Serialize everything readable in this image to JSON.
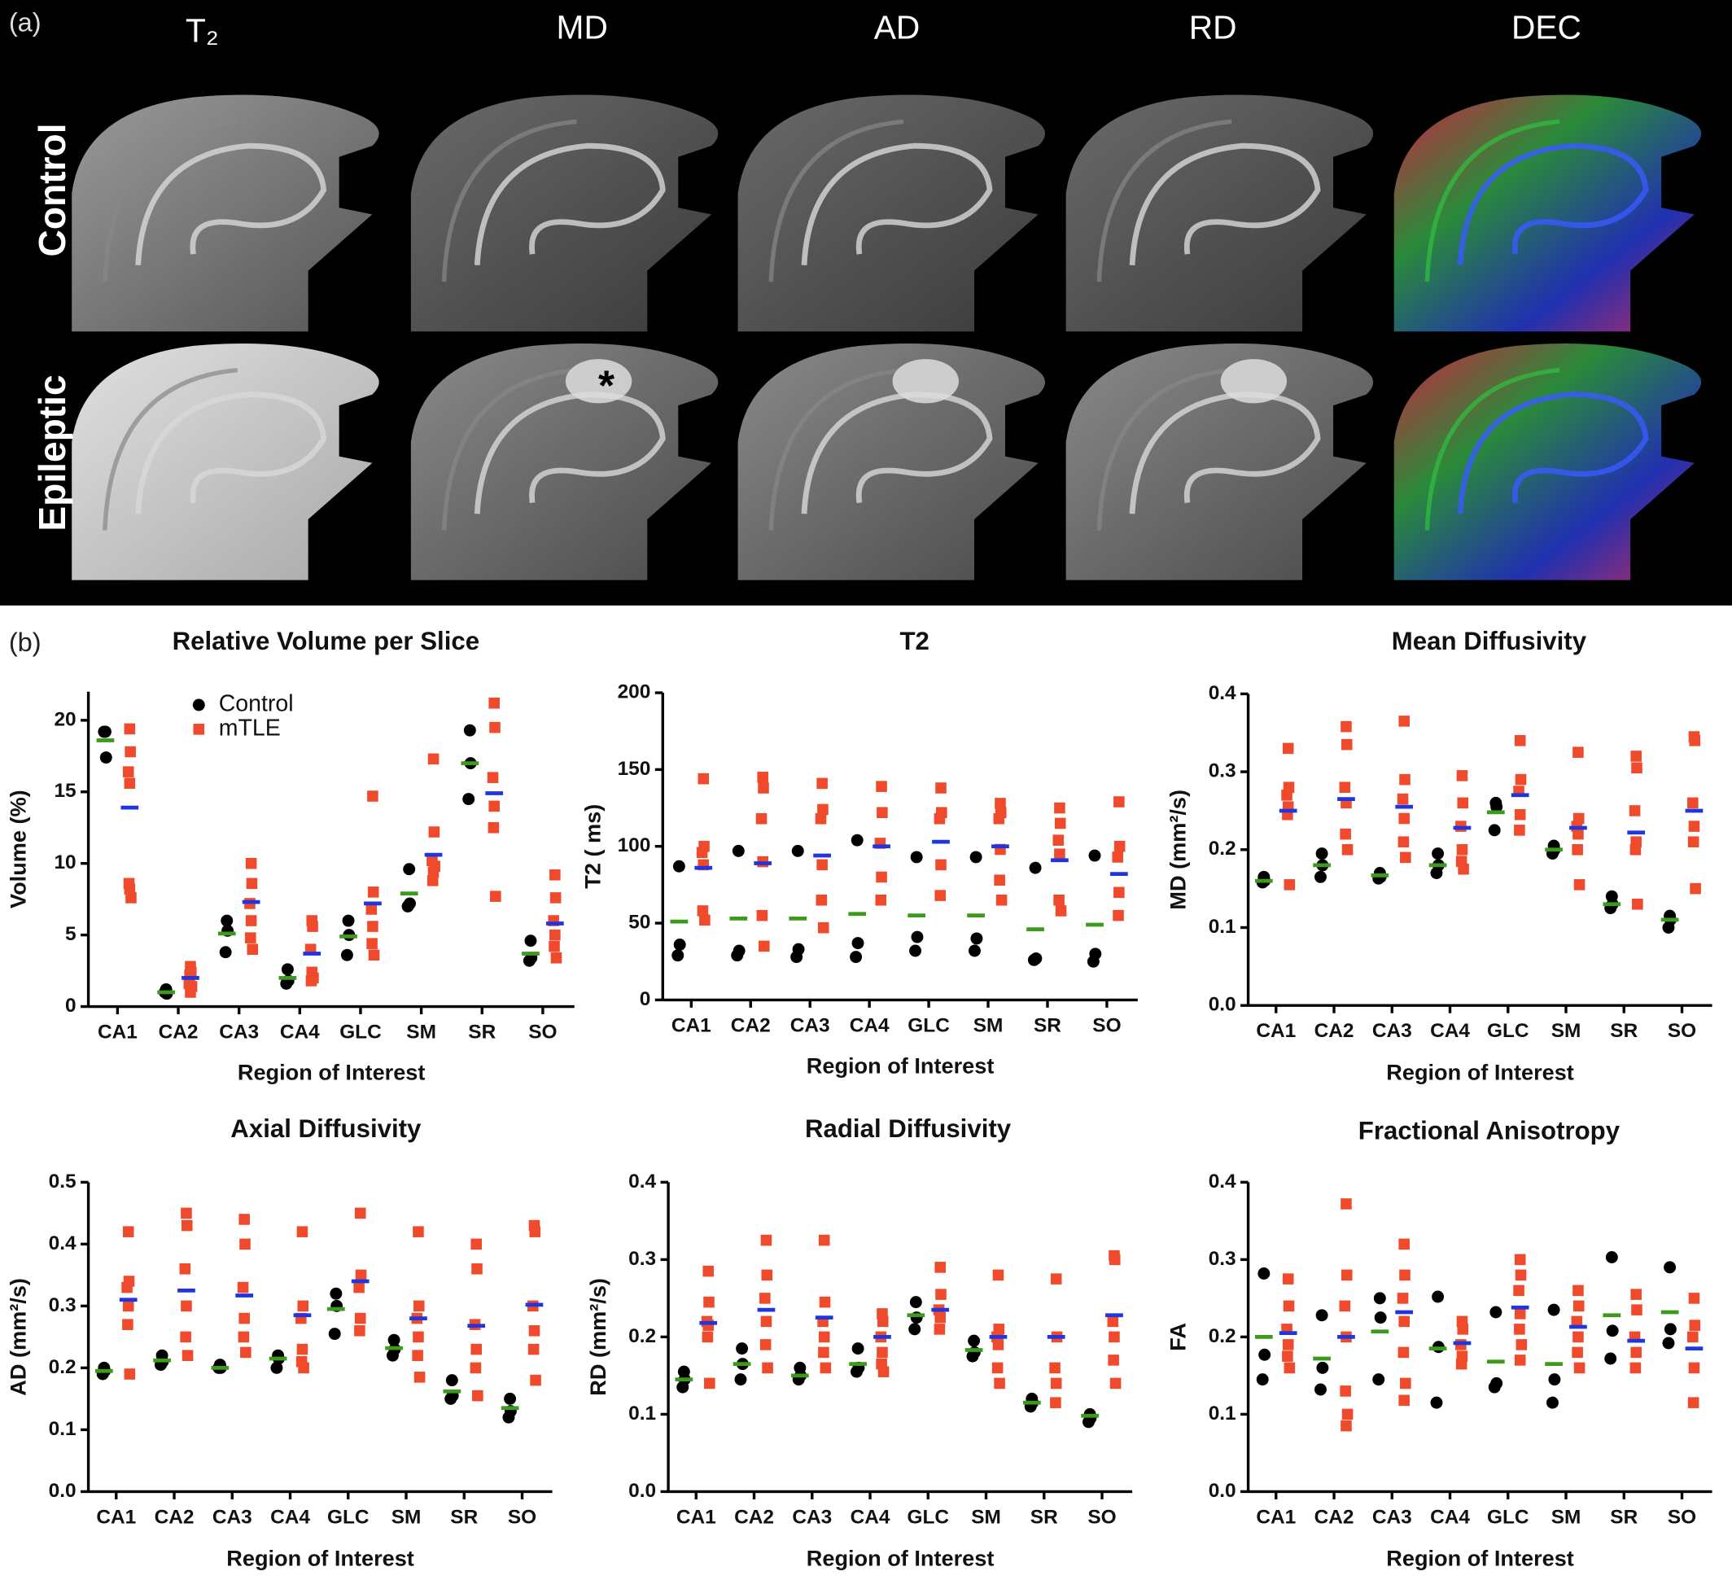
{
  "panel_a": {
    "label": "(a)",
    "columns": [
      "T₂",
      "MD",
      "AD",
      "RD",
      "DEC"
    ],
    "rows": [
      "Control",
      "Epileptic"
    ],
    "annotation": "*"
  },
  "panel_b": {
    "label": "(b)"
  },
  "chart_data": [
    {
      "type": "strip",
      "title": "Relative Volume per Slice",
      "xlabel": "Region of Interest",
      "ylabel": "Volume (%)",
      "categories": [
        "CA1",
        "CA2",
        "CA3",
        "CA4",
        "GLC",
        "SM",
        "SR",
        "SO"
      ],
      "ylim": [
        0,
        22
      ],
      "yticks": [
        0,
        5,
        10,
        15,
        20
      ],
      "legend": "upper left",
      "series": [
        {
          "name": "Control",
          "color": "#000000",
          "mean_color": "#3c9a1c",
          "marker": "circle",
          "values": [
            [
              19.2,
              17.4,
              19.2
            ],
            [
              1.2,
              0.9,
              1.0
            ],
            [
              6.0,
              5.3,
              3.8
            ],
            [
              2.6,
              1.8,
              1.6
            ],
            [
              6.0,
              5.0,
              3.6
            ],
            [
              9.6,
              7.2,
              7.0
            ],
            [
              19.3,
              17.0,
              14.5
            ],
            [
              4.6,
              3.4,
              3.2
            ]
          ],
          "means": [
            18.6,
            1.0,
            5.1,
            2.0,
            4.9,
            7.9,
            17.0,
            3.7
          ]
        },
        {
          "name": "mTLE",
          "color": "#f04a2c",
          "mean_color": "#1f35e0",
          "marker": "square",
          "values": [
            [
              19.4,
              17.8,
              16.4,
              15.6,
              8.6,
              7.6,
              8.2
            ],
            [
              2.8,
              2.4,
              1.6,
              1.0,
              2.2,
              1.4
            ],
            [
              10.0,
              8.6,
              7.2,
              6.0,
              4.8,
              4.0
            ],
            [
              6.0,
              5.6,
              4.0,
              2.4,
              1.8,
              2.0
            ],
            [
              14.7,
              8.0,
              6.8,
              5.6,
              4.4,
              3.6
            ],
            [
              17.3,
              12.2,
              10.2,
              9.4,
              8.8,
              9.8
            ],
            [
              21.2,
              19.5,
              16.0,
              14.0,
              12.5,
              7.7
            ],
            [
              9.2,
              7.6,
              6.0,
              5.0,
              4.2,
              3.4
            ]
          ],
          "means": [
            13.9,
            2.0,
            7.3,
            3.7,
            7.2,
            10.6,
            14.9,
            5.8
          ]
        }
      ]
    },
    {
      "type": "strip",
      "title": "T2",
      "xlabel": "Region of Interest",
      "ylabel": "T2 ( ms)",
      "categories": [
        "CA1",
        "CA2",
        "CA3",
        "CA4",
        "GLC",
        "SM",
        "SR",
        "SO"
      ],
      "ylim": [
        0,
        200
      ],
      "yticks": [
        0,
        50,
        100,
        150,
        200
      ],
      "series": [
        {
          "color": "#000000",
          "mean_color": "#3c9a1c",
          "marker": "circle",
          "values": [
            [
              87,
              36,
              29
            ],
            [
              97,
              32,
              29
            ],
            [
              97,
              33,
              28
            ],
            [
              104,
              37,
              28
            ],
            [
              93,
              41,
              32
            ],
            [
              93,
              40,
              32
            ],
            [
              86,
              27,
              26
            ],
            [
              94,
              30,
              25
            ]
          ],
          "means": [
            51,
            53,
            53,
            56,
            55,
            55,
            46,
            49
          ]
        },
        {
          "color": "#f04a2c",
          "mean_color": "#1f35e0",
          "marker": "square",
          "values": [
            [
              144,
              100,
              96,
              88,
              58,
              52
            ],
            [
              145,
              138,
              118,
              90,
              55,
              35
            ],
            [
              141,
              124,
              118,
              88,
              65,
              47
            ],
            [
              139,
              122,
              102,
              80,
              65
            ],
            [
              138,
              122,
              118,
              88,
              68
            ],
            [
              128,
              122,
              118,
              98,
              78,
              65
            ],
            [
              125,
              115,
              104,
              95,
              65,
              58
            ],
            [
              129,
              100,
              93,
              70,
              55
            ]
          ],
          "means": [
            86,
            89,
            94,
            100,
            103,
            100,
            91,
            82
          ]
        }
      ]
    },
    {
      "type": "strip",
      "title": "Mean Diffusivity",
      "xlabel": "Region of Interest",
      "ylabel": "MD (mm²/s)",
      "categories": [
        "CA1",
        "CA2",
        "CA3",
        "CA4",
        "GLC",
        "SM",
        "SR",
        "SO"
      ],
      "ylim": [
        0,
        0.4
      ],
      "yticks": [
        {
          "value": 0,
          "label": "0.0"
        },
        0.1,
        0.2,
        0.3,
        0.4
      ],
      "series": [
        {
          "color": "#000000",
          "mean_color": "#3c9a1c",
          "marker": "circle",
          "values": [
            [
              0.165,
              0.16,
              0.158
            ],
            [
              0.195,
              0.18,
              0.165
            ],
            [
              0.17,
              0.165,
              0.163
            ],
            [
              0.195,
              0.18,
              0.17
            ],
            [
              0.26,
              0.255,
              0.225
            ],
            [
              0.205,
              0.2,
              0.195
            ],
            [
              0.14,
              0.13,
              0.125
            ],
            [
              0.115,
              0.11,
              0.1
            ]
          ],
          "means": [
            0.16,
            0.18,
            0.167,
            0.18,
            0.248,
            0.2,
            0.13,
            0.11
          ]
        },
        {
          "color": "#f04a2c",
          "mean_color": "#1f35e0",
          "marker": "square",
          "values": [
            [
              0.33,
              0.28,
              0.27,
              0.255,
              0.245,
              0.155
            ],
            [
              0.358,
              0.335,
              0.28,
              0.26,
              0.22,
              0.2
            ],
            [
              0.365,
              0.29,
              0.265,
              0.24,
              0.21,
              0.19
            ],
            [
              0.295,
              0.26,
              0.23,
              0.2,
              0.185,
              0.175
            ],
            [
              0.34,
              0.29,
              0.275,
              0.245,
              0.225
            ],
            [
              0.325,
              0.24,
              0.23,
              0.22,
              0.2,
              0.155
            ],
            [
              0.32,
              0.305,
              0.25,
              0.21,
              0.2,
              0.13
            ],
            [
              0.345,
              0.34,
              0.26,
              0.23,
              0.21,
              0.15
            ]
          ],
          "means": [
            0.25,
            0.265,
            0.255,
            0.228,
            0.27,
            0.228,
            0.222,
            0.25
          ]
        }
      ]
    },
    {
      "type": "strip",
      "title": "Axial Diffusivity",
      "xlabel": "Region of Interest",
      "ylabel": "AD (mm²/s)",
      "categories": [
        "CA1",
        "CA2",
        "CA3",
        "CA4",
        "GLC",
        "SM",
        "SR",
        "SO"
      ],
      "ylim": [
        0,
        0.5
      ],
      "yticks": [
        {
          "value": 0,
          "label": "0.0"
        },
        0.1,
        0.2,
        0.3,
        0.4,
        0.5
      ],
      "series": [
        {
          "color": "#000000",
          "mean_color": "#3c9a1c",
          "marker": "circle",
          "values": [
            [
              0.2,
              0.195,
              0.19
            ],
            [
              0.22,
              0.21,
              0.205
            ],
            [
              0.205,
              0.2,
              0.2
            ],
            [
              0.22,
              0.215,
              0.2
            ],
            [
              0.32,
              0.3,
              0.255
            ],
            [
              0.245,
              0.23,
              0.22
            ],
            [
              0.18,
              0.155,
              0.15
            ],
            [
              0.15,
              0.13,
              0.12
            ]
          ],
          "means": [
            0.195,
            0.212,
            0.2,
            0.215,
            0.295,
            0.232,
            0.162,
            0.135
          ]
        },
        {
          "color": "#f04a2c",
          "mean_color": "#1f35e0",
          "marker": "square",
          "values": [
            [
              0.42,
              0.34,
              0.33,
              0.3,
              0.27,
              0.19
            ],
            [
              0.45,
              0.43,
              0.36,
              0.3,
              0.25,
              0.22
            ],
            [
              0.44,
              0.4,
              0.33,
              0.28,
              0.25,
              0.225
            ],
            [
              0.42,
              0.3,
              0.28,
              0.23,
              0.21,
              0.2
            ],
            [
              0.45,
              0.35,
              0.33,
              0.28,
              0.26
            ],
            [
              0.42,
              0.3,
              0.28,
              0.25,
              0.22,
              0.185
            ],
            [
              0.4,
              0.36,
              0.27,
              0.23,
              0.2,
              0.155
            ],
            [
              0.43,
              0.42,
              0.3,
              0.26,
              0.23,
              0.18
            ]
          ],
          "means": [
            0.31,
            0.325,
            0.317,
            0.285,
            0.34,
            0.28,
            0.268,
            0.302
          ]
        }
      ]
    },
    {
      "type": "strip",
      "title": "Radial Diffusivity",
      "xlabel": "Region of Interest",
      "ylabel": "RD (mm²/s)",
      "categories": [
        "CA1",
        "CA2",
        "CA3",
        "CA4",
        "GLC",
        "SM",
        "SR",
        "SO"
      ],
      "ylim": [
        0,
        0.4
      ],
      "yticks": [
        {
          "value": 0,
          "label": "0.0"
        },
        0.1,
        0.2,
        0.3,
        0.4
      ],
      "series": [
        {
          "color": "#000000",
          "mean_color": "#3c9a1c",
          "marker": "circle",
          "values": [
            [
              0.155,
              0.145,
              0.135
            ],
            [
              0.185,
              0.165,
              0.145
            ],
            [
              0.16,
              0.15,
              0.145
            ],
            [
              0.185,
              0.16,
              0.155
            ],
            [
              0.245,
              0.225,
              0.21
            ],
            [
              0.195,
              0.18,
              0.175
            ],
            [
              0.12,
              0.115,
              0.11
            ],
            [
              0.1,
              0.095,
              0.09
            ]
          ],
          "means": [
            0.145,
            0.165,
            0.15,
            0.165,
            0.228,
            0.183,
            0.115,
            0.098
          ]
        },
        {
          "color": "#f04a2c",
          "mean_color": "#1f35e0",
          "marker": "square",
          "values": [
            [
              0.285,
              0.245,
              0.22,
              0.215,
              0.2,
              0.14
            ],
            [
              0.325,
              0.28,
              0.25,
              0.22,
              0.19,
              0.16
            ],
            [
              0.325,
              0.245,
              0.22,
              0.2,
              0.18,
              0.16
            ],
            [
              0.23,
              0.22,
              0.2,
              0.18,
              0.165,
              0.155
            ],
            [
              0.29,
              0.255,
              0.235,
              0.225,
              0.21
            ],
            [
              0.28,
              0.21,
              0.2,
              0.19,
              0.16,
              0.14
            ],
            [
              0.275,
              0.2,
              0.16,
              0.14,
              0.115
            ],
            [
              0.305,
              0.3,
              0.22,
              0.2,
              0.17,
              0.14
            ]
          ],
          "means": [
            0.218,
            0.235,
            0.225,
            0.2,
            0.235,
            0.2,
            0.2,
            0.228
          ]
        }
      ]
    },
    {
      "type": "strip",
      "title": "Fractional Anisotropy",
      "xlabel": "Region of Interest",
      "ylabel": "FA",
      "categories": [
        "CA1",
        "CA2",
        "CA3",
        "CA4",
        "GLC",
        "SM",
        "SR",
        "SO"
      ],
      "ylim": [
        0,
        0.4
      ],
      "yticks": [
        {
          "value": 0,
          "label": "0.0"
        },
        0.1,
        0.2,
        0.3,
        0.4
      ],
      "series": [
        {
          "color": "#000000",
          "mean_color": "#3c9a1c",
          "marker": "circle",
          "values": [
            [
              0.282,
              0.177,
              0.145
            ],
            [
              0.228,
              0.16,
              0.132
            ],
            [
              0.25,
              0.225,
              0.145
            ],
            [
              0.252,
              0.187,
              0.115
            ],
            [
              0.232,
              0.14,
              0.135
            ],
            [
              0.235,
              0.145,
              0.115
            ],
            [
              0.303,
              0.208,
              0.172
            ],
            [
              0.29,
              0.21,
              0.192
            ]
          ],
          "means": [
            0.2,
            0.172,
            0.207,
            0.185,
            0.168,
            0.165,
            0.228,
            0.232
          ]
        },
        {
          "color": "#f04a2c",
          "mean_color": "#1f35e0",
          "marker": "square",
          "values": [
            [
              0.275,
              0.24,
              0.21,
              0.19,
              0.175,
              0.16
            ],
            [
              0.372,
              0.28,
              0.24,
              0.2,
              0.13,
              0.1,
              0.085
            ],
            [
              0.32,
              0.28,
              0.25,
              0.22,
              0.18,
              0.14,
              0.118
            ],
            [
              0.22,
              0.21,
              0.19,
              0.175,
              0.165
            ],
            [
              0.3,
              0.28,
              0.26,
              0.23,
              0.21,
              0.19,
              0.17
            ],
            [
              0.26,
              0.24,
              0.22,
              0.2,
              0.18,
              0.16
            ],
            [
              0.255,
              0.235,
              0.2,
              0.18,
              0.16
            ],
            [
              0.25,
              0.215,
              0.2,
              0.16,
              0.115
            ]
          ],
          "means": [
            0.205,
            0.2,
            0.232,
            0.192,
            0.238,
            0.213,
            0.195,
            0.185
          ]
        }
      ]
    }
  ]
}
